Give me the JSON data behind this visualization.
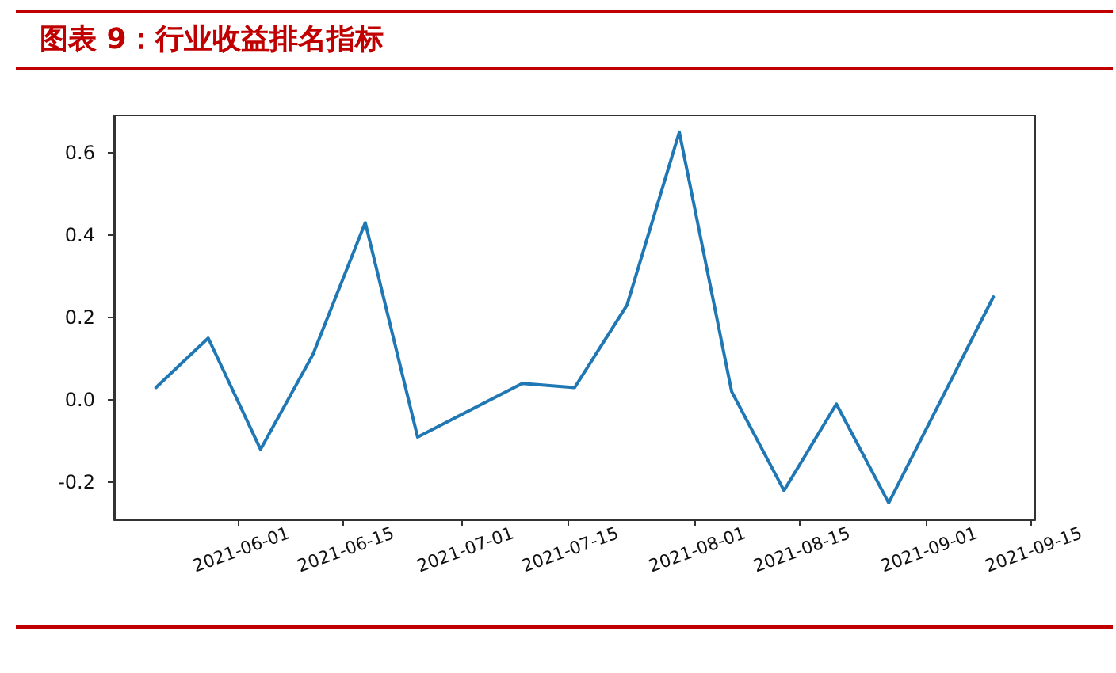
{
  "chart_data": {
    "type": "line",
    "title": "图表 9：行业收益排名指标",
    "x": [
      "2021-05-21",
      "2021-05-28",
      "2021-06-04",
      "2021-06-11",
      "2021-06-18",
      "2021-06-25",
      "2021-07-09",
      "2021-07-16",
      "2021-07-23",
      "2021-07-30",
      "2021-08-06",
      "2021-08-13",
      "2021-08-20",
      "2021-08-27",
      "2021-09-10"
    ],
    "series": [
      {
        "color": "#1f77b4",
        "values": [
          0.03,
          0.15,
          -0.12,
          0.11,
          0.43,
          -0.09,
          0.04,
          0.03,
          0.23,
          0.65,
          0.02,
          -0.22,
          -0.01,
          -0.25,
          0.25
        ]
      }
    ],
    "xlim": [
      "2021-05-15T10:00",
      "2021-09-15T14:00"
    ],
    "xticks": [
      "2021-06-01",
      "2021-06-15",
      "2021-07-01",
      "2021-07-15",
      "2021-08-01",
      "2021-08-15",
      "2021-09-01",
      "2021-09-15"
    ],
    "ylim": [
      -0.29,
      0.69
    ],
    "yticks": [
      -0.2,
      {
        "value": 0,
        "label": "0.0"
      },
      0.2,
      0.4,
      0.6
    ],
    "line_style": "solid"
  }
}
